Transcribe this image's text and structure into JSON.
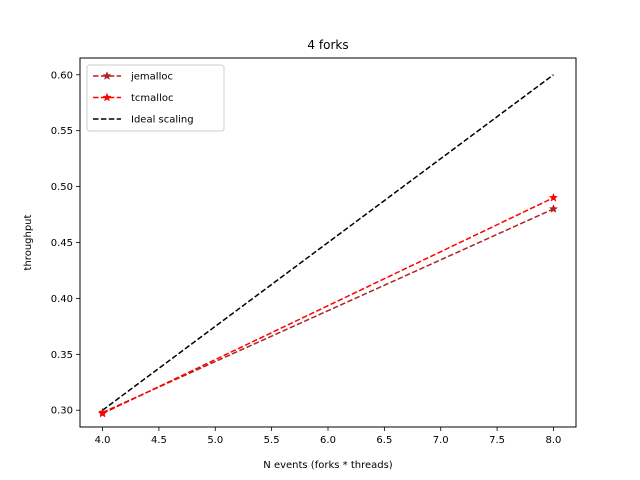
{
  "chart_data": {
    "type": "line",
    "title": "4 forks",
    "xlabel": "N events (forks * threads)",
    "ylabel": "throughput",
    "xlim": [
      3.8,
      8.2
    ],
    "ylim": [
      0.285,
      0.615
    ],
    "xticks": [
      4.0,
      4.5,
      5.0,
      5.5,
      6.0,
      6.5,
      7.0,
      7.5,
      8.0
    ],
    "xtick_labels": [
      "4.0",
      "4.5",
      "5.0",
      "5.5",
      "6.0",
      "6.5",
      "7.0",
      "7.5",
      "8.0"
    ],
    "yticks": [
      0.3,
      0.35,
      0.4,
      0.45,
      0.5,
      0.55,
      0.6
    ],
    "ytick_labels": [
      "0.30",
      "0.35",
      "0.40",
      "0.45",
      "0.50",
      "0.55",
      "0.60"
    ],
    "grid": false,
    "legend_position": "top-left",
    "series": [
      {
        "name": "jemalloc",
        "x": [
          4,
          8
        ],
        "y": [
          0.298,
          0.48
        ],
        "color": "#b22222",
        "linestyle": "dashed",
        "marker": "star"
      },
      {
        "name": "tcmalloc",
        "x": [
          4,
          8
        ],
        "y": [
          0.297,
          0.49
        ],
        "color": "#ff0000",
        "linestyle": "dashed",
        "marker": "star"
      },
      {
        "name": "Ideal scaling",
        "x": [
          4,
          8
        ],
        "y": [
          0.3,
          0.6
        ],
        "color": "#000000",
        "linestyle": "dashed",
        "marker": "none"
      }
    ]
  }
}
